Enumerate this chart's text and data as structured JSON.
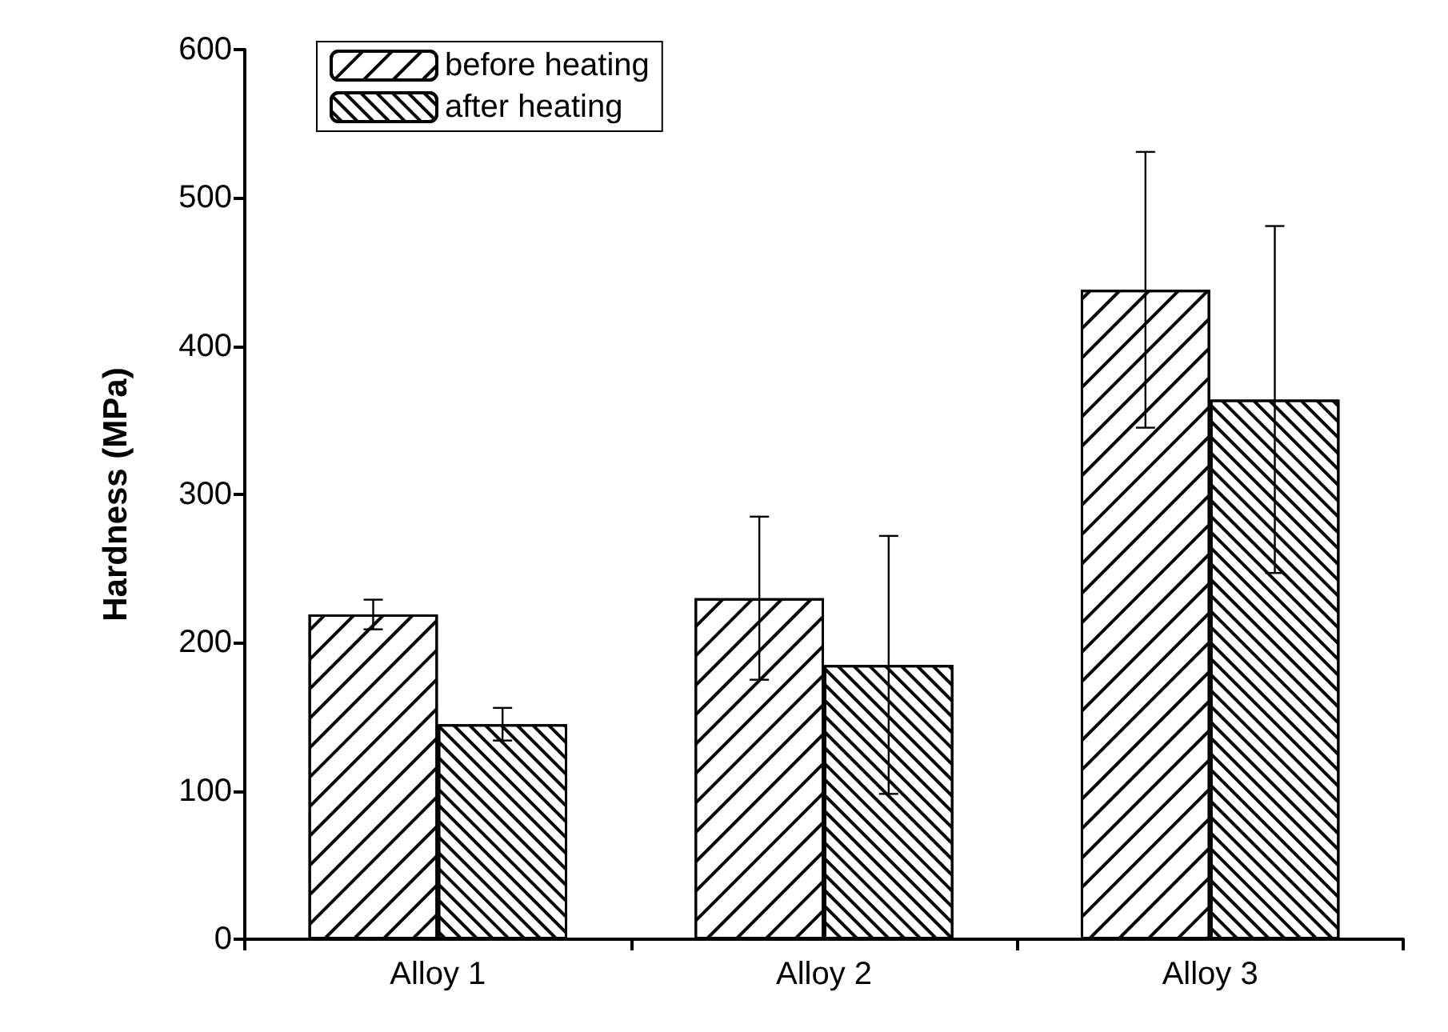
{
  "chart_data": {
    "type": "bar",
    "ylabel": "Hardness (MPa)",
    "categories": [
      "Alloy 1",
      "Alloy 2",
      "Alloy 3"
    ],
    "series": [
      {
        "name": "before heating",
        "color": "#000000",
        "values": [
          219,
          230,
          438
        ],
        "errors": [
          10,
          55,
          93
        ]
      },
      {
        "name": "after heating",
        "color": "#000000",
        "values": [
          145,
          185,
          364
        ],
        "errors": [
          11,
          87,
          117
        ]
      }
    ],
    "ylim": [
      0,
      600
    ],
    "yticks": [
      0,
      100,
      200,
      300,
      400,
      500,
      600
    ],
    "grid": false,
    "legend": "top left"
  }
}
